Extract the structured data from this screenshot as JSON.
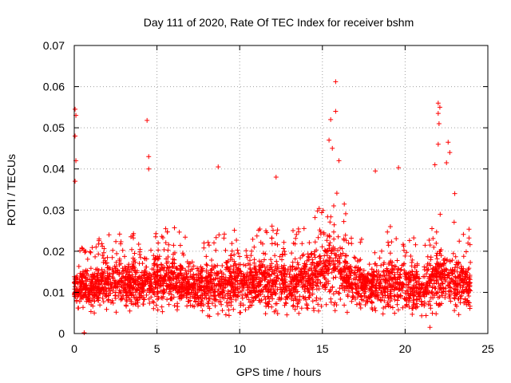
{
  "chart_data": {
    "type": "scatter",
    "title": "Day 111 of 2020, Rate Of TEC Index for receiver bshm",
    "xlabel": "GPS time / hours",
    "ylabel": "ROTI / TECUs",
    "xlim": [
      0,
      25
    ],
    "ylim": [
      0,
      0.07
    ],
    "xticks": [
      0,
      5,
      10,
      15,
      20,
      25
    ],
    "yticks": [
      0,
      0.01,
      0.02,
      0.03,
      0.04,
      0.05,
      0.06,
      0.07
    ],
    "xtick_labels": [
      "0",
      "5",
      "10",
      "15",
      "20",
      "25"
    ],
    "ytick_labels": [
      "0",
      "0.01",
      "0.02",
      "0.03",
      "0.04",
      "0.05",
      "0.06",
      "0.07"
    ],
    "grid": true,
    "marker": "plus",
    "series_color": "#ff0000",
    "notable_points": [
      {
        "x": 0.05,
        "y": 0.0545
      },
      {
        "x": 0.1,
        "y": 0.053
      },
      {
        "x": 0.05,
        "y": 0.048
      },
      {
        "x": 0.1,
        "y": 0.042
      },
      {
        "x": 0.05,
        "y": 0.037
      },
      {
        "x": 4.4,
        "y": 0.0518
      },
      {
        "x": 4.5,
        "y": 0.043
      },
      {
        "x": 4.5,
        "y": 0.04
      },
      {
        "x": 8.7,
        "y": 0.0405
      },
      {
        "x": 12.2,
        "y": 0.038
      },
      {
        "x": 15.8,
        "y": 0.0612
      },
      {
        "x": 15.8,
        "y": 0.054
      },
      {
        "x": 15.5,
        "y": 0.052
      },
      {
        "x": 15.4,
        "y": 0.047
      },
      {
        "x": 15.6,
        "y": 0.045
      },
      {
        "x": 16.0,
        "y": 0.042
      },
      {
        "x": 18.2,
        "y": 0.0395
      },
      {
        "x": 19.6,
        "y": 0.0403
      },
      {
        "x": 22.0,
        "y": 0.056
      },
      {
        "x": 22.1,
        "y": 0.055
      },
      {
        "x": 22.0,
        "y": 0.0535
      },
      {
        "x": 22.05,
        "y": 0.051
      },
      {
        "x": 22.0,
        "y": 0.046
      },
      {
        "x": 21.8,
        "y": 0.041
      },
      {
        "x": 22.6,
        "y": 0.0465
      },
      {
        "x": 22.7,
        "y": 0.044
      },
      {
        "x": 22.5,
        "y": 0.0415
      },
      {
        "x": 23.0,
        "y": 0.034
      },
      {
        "x": 0.6,
        "y": 0.0002
      },
      {
        "x": 21.5,
        "y": 0.0015
      }
    ],
    "envelope": {
      "hours": [
        0,
        1,
        2,
        3,
        4,
        5,
        6,
        7,
        8,
        9,
        10,
        11,
        12,
        13,
        14,
        15,
        16,
        17,
        18,
        19,
        20,
        21,
        22,
        23,
        24
      ],
      "typical_low": [
        0.006,
        0.005,
        0.005,
        0.005,
        0.005,
        0.005,
        0.005,
        0.004,
        0.004,
        0.004,
        0.004,
        0.004,
        0.004,
        0.004,
        0.004,
        0.005,
        0.005,
        0.004,
        0.004,
        0.004,
        0.004,
        0.004,
        0.004,
        0.004,
        0.004
      ],
      "typical_high": [
        0.02,
        0.022,
        0.024,
        0.025,
        0.024,
        0.026,
        0.026,
        0.024,
        0.024,
        0.026,
        0.028,
        0.028,
        0.027,
        0.027,
        0.027,
        0.032,
        0.036,
        0.025,
        0.024,
        0.027,
        0.024,
        0.023,
        0.03,
        0.028,
        0.025
      ]
    }
  }
}
